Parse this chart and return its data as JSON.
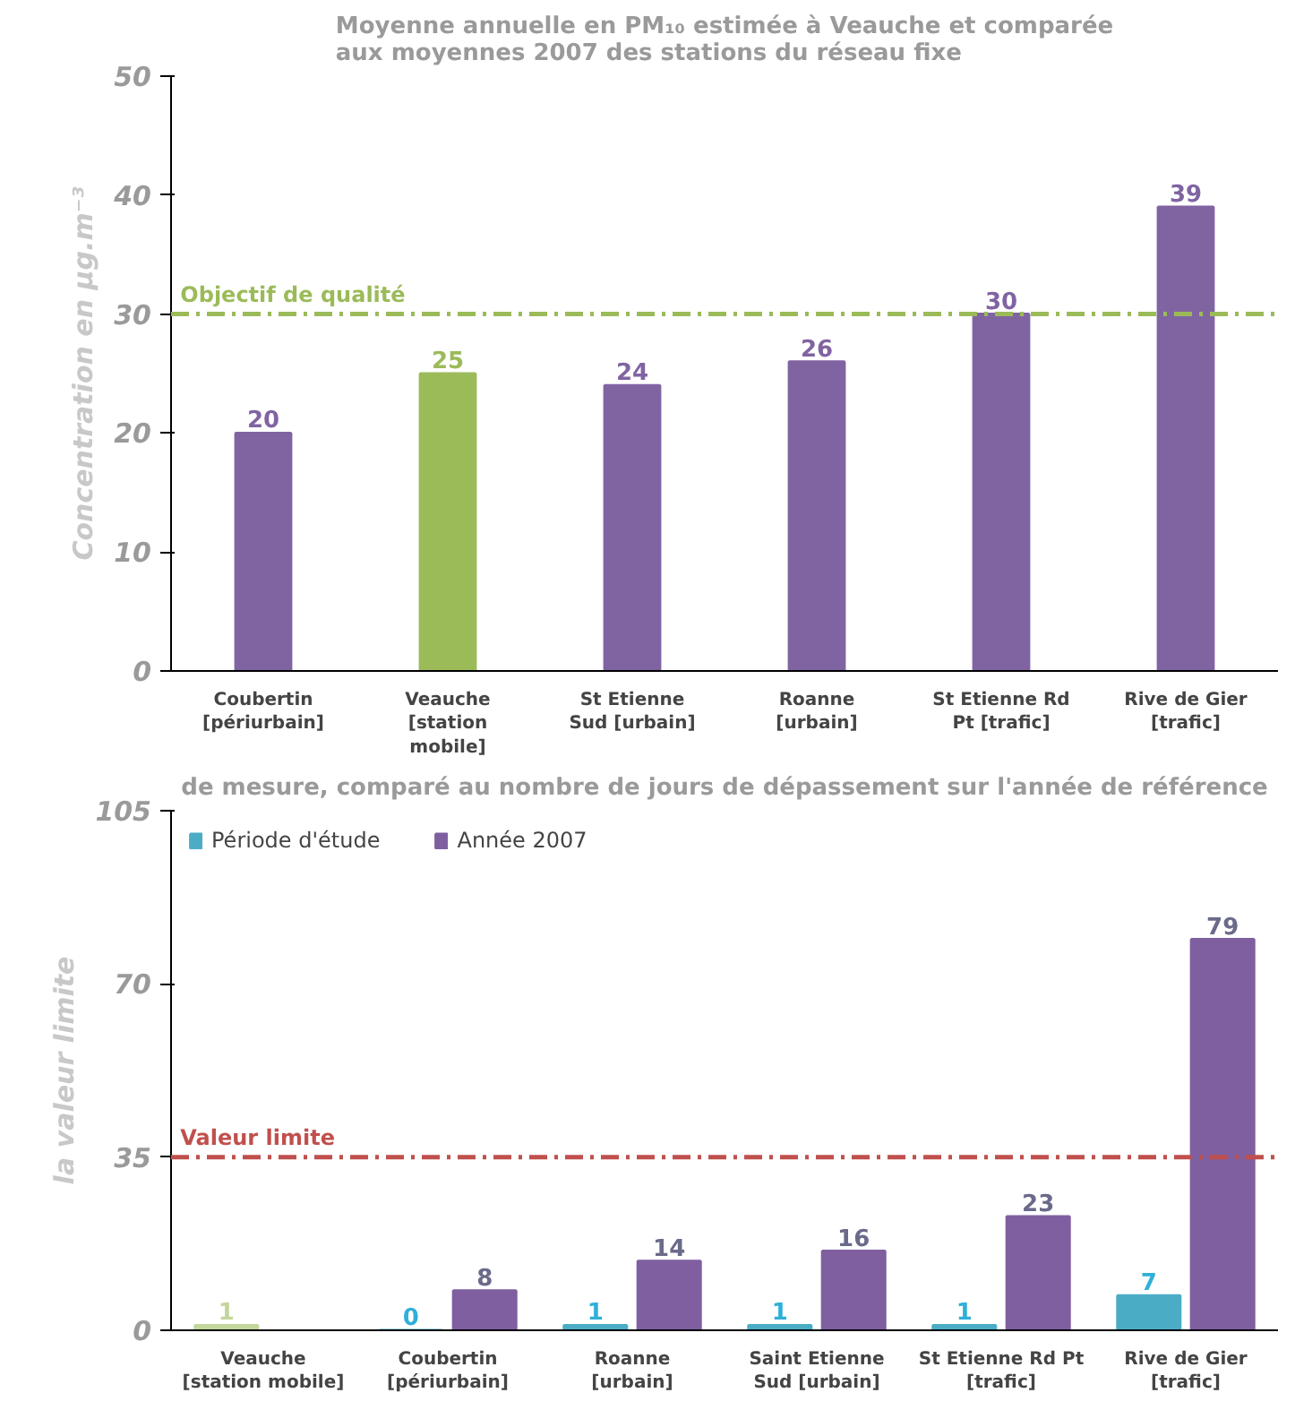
{
  "chart_data": [
    {
      "type": "bar",
      "title": "Moyenne annuelle en PM₁₀ estimée à Veauche et comparée\naux moyennes 2007 des stations du réseau fixe",
      "ylabel": "Concentration en µg.m⁻³",
      "categories": [
        "Coubertin\n[périurbain]",
        "Veauche\n[station\nmobile]",
        "St Etienne\nSud [urbain]",
        "Roanne\n[urbain]",
        "St Etienne Rd\nPt [trafic]",
        "Rive de Gier\n[trafic]"
      ],
      "values": [
        20,
        25,
        24,
        26,
        30,
        39
      ],
      "colors": [
        "#8064a2",
        "#9bbb59",
        "#8064a2",
        "#8064a2",
        "#8064a2",
        "#8064a2"
      ],
      "ylim": [
        0,
        50
      ],
      "yticks": [
        0,
        10,
        20,
        30,
        40,
        50
      ],
      "grid": false,
      "data_labels": true,
      "ref_lines": [
        {
          "axis": "y",
          "value": 30,
          "label": "Objectif de qualité",
          "color": "#9bbb59",
          "line_style": "dashdot"
        }
      ]
    },
    {
      "type": "bar",
      "title": "de mesure, comparé au nombre de jours de dépassement sur l'année de référence",
      "ylabel": "la valeur limite",
      "categories": [
        "Veauche\n[station mobile]",
        "Coubertin\n[périurbain]",
        "Roanne\n[urbain]",
        "Saint Etienne\nSud [urbain]",
        "St Etienne Rd Pt\n[trafic]",
        "Rive de Gier\n[trafic]"
      ],
      "series": [
        {
          "name": "Période d'étude",
          "color": "#4bacc6",
          "colors": [
            "#c3d69b",
            "#4bacc6",
            "#4bacc6",
            "#4bacc6",
            "#4bacc6",
            "#4bacc6"
          ],
          "values": [
            1,
            0,
            1,
            1,
            1,
            7
          ]
        },
        {
          "name": "Année 2007",
          "color": "#7f5fa0",
          "values": [
            null,
            8,
            14,
            16,
            23,
            79
          ]
        }
      ],
      "ylim": [
        0,
        105
      ],
      "yticks": [
        0,
        35,
        70,
        105
      ],
      "grid": false,
      "data_labels": true,
      "legend": "top left",
      "ref_lines": [
        {
          "axis": "y",
          "value": 35,
          "label": "Valeur limite",
          "color": "#c0504d",
          "line_style": "dashdot"
        }
      ]
    }
  ]
}
